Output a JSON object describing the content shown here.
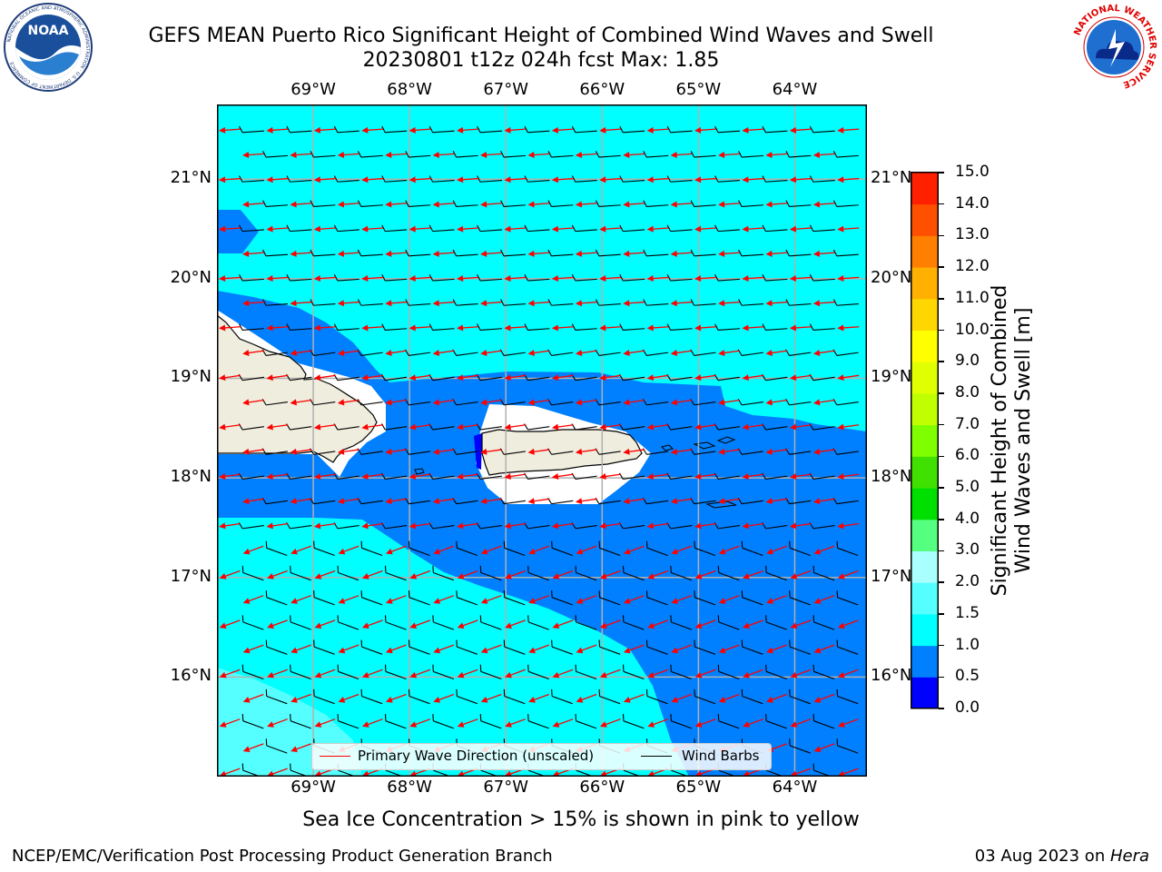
{
  "header": {
    "title": "GEFS MEAN Puerto Rico Significant Height of Combined Wind Waves and Swell",
    "subtitle": "20230801 t12z 024h fcst   Max: 1.85"
  },
  "logos": {
    "left": {
      "icon": "noaa-logo",
      "text": "NOAA",
      "ring_text": "NATIONAL OCEANIC AND ATMOSPHERIC ADMINISTRATION · U.S. DEPARTMENT OF COMMERCE"
    },
    "right": {
      "icon": "nws-logo",
      "ring_text": "NATIONAL WEATHER SERVICE"
    }
  },
  "map": {
    "lon_labels": [
      "69°W",
      "68°W",
      "67°W",
      "66°W",
      "65°W",
      "64°W"
    ],
    "lat_labels": [
      "21°N",
      "20°N",
      "19°N",
      "18°N",
      "17°N",
      "16°N"
    ],
    "lon_range": [
      -70.0,
      -63.25
    ],
    "lat_range": [
      15.0,
      21.75
    ],
    "gridlines": true,
    "land_color": "#efedde",
    "coast_color": "#000000"
  },
  "colorbar": {
    "label": "Significant Height of Combined\nWind Waves and Swell [m]",
    "ticks": [
      "0.0",
      "0.5",
      "1.0",
      "1.5",
      "2.0",
      "3.0",
      "4.0",
      "5.0",
      "6.0",
      "7.0",
      "8.0",
      "9.0",
      "10.0",
      "11.0",
      "12.0",
      "13.0",
      "14.0",
      "15.0"
    ],
    "colors": [
      "#0000ff",
      "#0080ff",
      "#00ffff",
      "#55ffff",
      "#aaffff",
      "#55ff80",
      "#00e000",
      "#40e000",
      "#80ff00",
      "#c0ff00",
      "#e0ff00",
      "#ffff00",
      "#ffd700",
      "#ffb000",
      "#ff8000",
      "#ff5000",
      "#ff2000"
    ]
  },
  "legend": {
    "primary_wave_label": "Primary Wave Direction (unscaled)",
    "wind_barbs_label": "Wind Barbs",
    "primary_wave_color": "#ff0000",
    "wind_barbs_color": "#000000"
  },
  "footnote": "Sea Ice Concentration > 15% is shown in pink to yellow",
  "footer": {
    "left": "NCEP/EMC/Verification Post Processing Product Generation Branch",
    "right_date": "03 Aug 2023 on ",
    "right_host": "Hera"
  }
}
